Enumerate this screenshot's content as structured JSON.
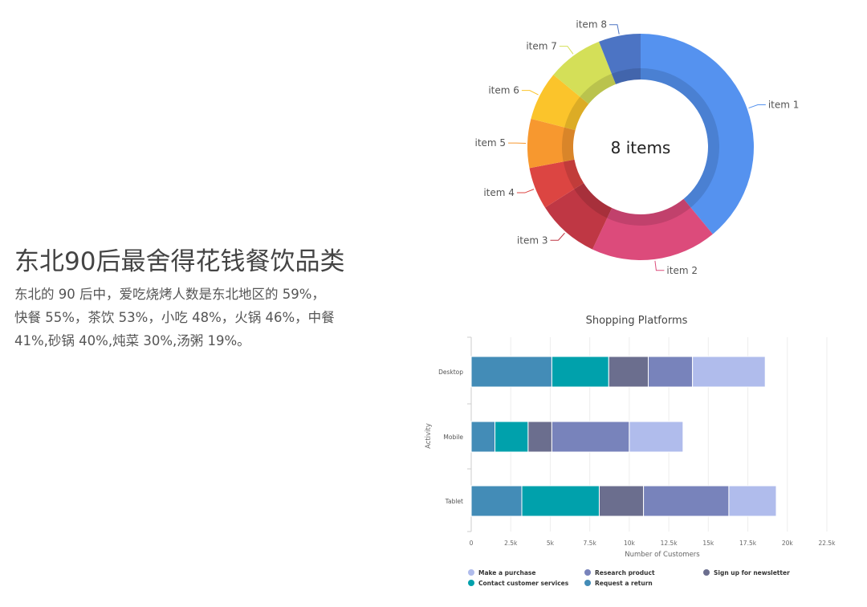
{
  "text": {
    "title": "东北90后最舍得花钱餐饮品类",
    "lines": [
      "东北的 90 后中，爱吃烧烤人数是东北地区的 59%，",
      "快餐 55%，茶饮 53%，小吃 48%，火锅 46%，中餐",
      "41%,砂锅 40%,炖菜 30%,汤粥 19%。"
    ]
  },
  "chart_data": [
    {
      "type": "pie",
      "donut": true,
      "center_label": "8 items",
      "categories": [
        "item 1",
        "item 2",
        "item 3",
        "item 4",
        "item 5",
        "item 6",
        "item 7",
        "item 8"
      ],
      "values": [
        39,
        18,
        9,
        6,
        7,
        7,
        8,
        6
      ],
      "colors": [
        "#5592ef",
        "#dc4b7b",
        "#bf3744",
        "#dc4542",
        "#f7982f",
        "#fbc42b",
        "#d4df58",
        "#4c74c4"
      ]
    },
    {
      "type": "bar",
      "orientation": "horizontal",
      "stacked": true,
      "title": "Shopping Platforms",
      "xlabel": "Number of Customers",
      "ylabel": "Activity",
      "categories": [
        "Desktop",
        "Mobile",
        "Tablet"
      ],
      "xlim": [
        0,
        22500
      ],
      "xticks": [
        "0",
        "2.5k",
        "5k",
        "7.5k",
        "10k",
        "12.5k",
        "15k",
        "17.5k",
        "20k",
        "22.5k"
      ],
      "grid": true,
      "legend": "bottom",
      "series": [
        {
          "name": "Request a return",
          "color": "#438cb7",
          "values": [
            5100,
            1500,
            3200
          ]
        },
        {
          "name": "Contact customer services",
          "color": "#00a1ac",
          "values": [
            3600,
            2100,
            4900
          ]
        },
        {
          "name": "Sign up for newsletter",
          "color": "#6b6e8e",
          "values": [
            2500,
            1500,
            2800
          ]
        },
        {
          "name": "Research product",
          "color": "#7883bb",
          "values": [
            2800,
            4900,
            5400
          ]
        },
        {
          "name": "Make a purchase",
          "color": "#b0bcec",
          "values": [
            4600,
            3400,
            3000
          ]
        }
      ],
      "legend_order": [
        "Make a purchase",
        "Research product",
        "Sign up for newsletter",
        "Contact customer services",
        "Request a return"
      ]
    }
  ]
}
